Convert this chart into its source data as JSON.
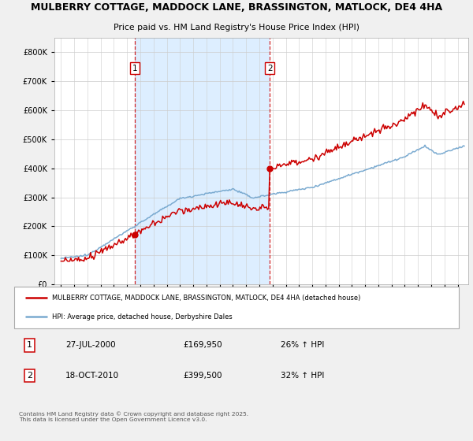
{
  "title_line1": "MULBERRY COTTAGE, MADDOCK LANE, BRASSINGTON, MATLOCK, DE4 4HA",
  "title_line2": "Price paid vs. HM Land Registry's House Price Index (HPI)",
  "legend_label_red": "MULBERRY COTTAGE, MADDOCK LANE, BRASSINGTON, MATLOCK, DE4 4HA (detached house)",
  "legend_label_blue": "HPI: Average price, detached house, Derbyshire Dales",
  "purchase1_date": "27-JUL-2000",
  "purchase1_price": "£169,950",
  "purchase1_hpi": "26% ↑ HPI",
  "purchase1_year": 2000.57,
  "purchase1_value": 169950,
  "purchase2_date": "18-OCT-2010",
  "purchase2_price": "£399,500",
  "purchase2_hpi": "32% ↑ HPI",
  "purchase2_year": 2010.8,
  "purchase2_value": 399500,
  "copyright_text": "Contains HM Land Registry data © Crown copyright and database right 2025.\nThis data is licensed under the Open Government Licence v3.0.",
  "bg_color": "#f0f0f0",
  "plot_bg_color": "#ffffff",
  "shade_color": "#ddeeff",
  "red_color": "#cc0000",
  "blue_color": "#7aaad0",
  "dashed_color": "#cc0000",
  "ylim_max": 850000,
  "ylim_min": 0,
  "xmin": 1994.5,
  "xmax": 2025.8
}
